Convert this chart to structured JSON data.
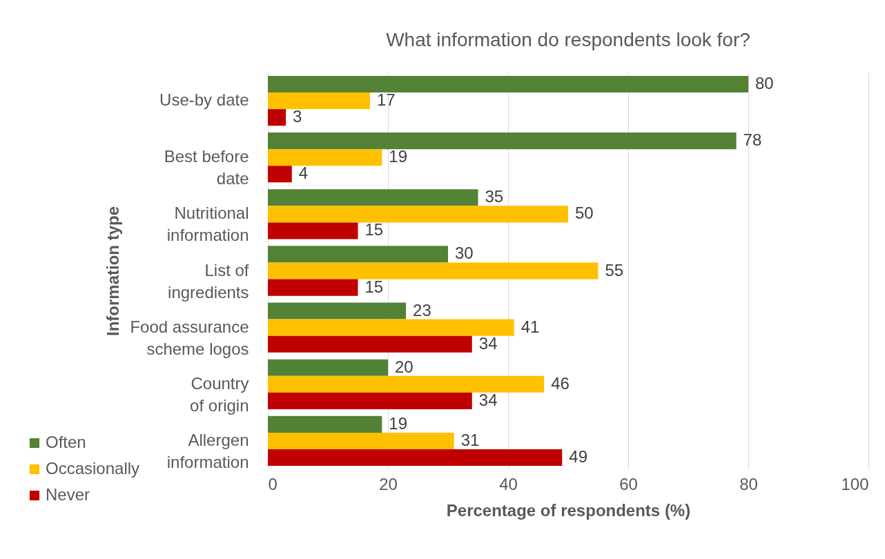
{
  "chart_data": {
    "type": "bar",
    "orientation": "horizontal",
    "title": "What information do respondents look for?",
    "xlabel": "Percentage of respondents (%)",
    "ylabel": "Information type",
    "categories": [
      "Use-by date",
      "Best before date",
      "Nutritional information",
      "List of ingredients",
      "Food assurance scheme logos",
      "Country of origin",
      "Allergen information"
    ],
    "series": [
      {
        "name": "Often",
        "color": "#548235",
        "values": [
          80,
          78,
          35,
          30,
          23,
          20,
          19
        ]
      },
      {
        "name": "Occasionally",
        "color": "#ffc000",
        "values": [
          17,
          19,
          50,
          55,
          41,
          46,
          31
        ]
      },
      {
        "name": "Never",
        "color": "#c00000",
        "values": [
          3,
          4,
          15,
          15,
          34,
          34,
          49
        ]
      }
    ],
    "xlim": [
      0,
      100
    ],
    "xticks": [
      0,
      20,
      40,
      60,
      80,
      100
    ],
    "grid": "x",
    "legend": "bottom left",
    "data_labels": true
  }
}
